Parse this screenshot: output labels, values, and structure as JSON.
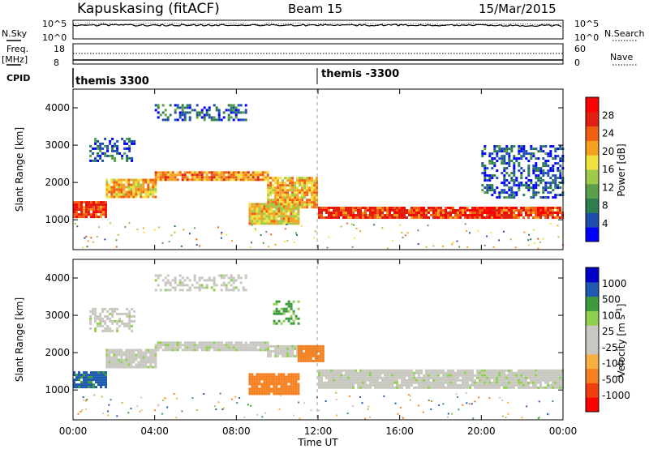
{
  "header": {
    "station": "Kapuskasing (fitACF)",
    "beam": "Beam 15",
    "date": "15/Mar/2015"
  },
  "summary_panels": {
    "nsky_label": "N.Sky",
    "nsky_ticks": [
      "10^5",
      "10^0"
    ],
    "nsearch_label": "N.Search",
    "nsearch_ticks": [
      "10^5",
      "10^0"
    ],
    "freq_label": "Freq.",
    "freq_unit": "[MHz]",
    "freq_ticks": [
      "18",
      "8"
    ],
    "nave_label": "Nave",
    "nave_ticks": [
      "60",
      "0"
    ],
    "cpid_label": "CPID",
    "cpid_segments": [
      "themis 3300",
      "themis -3300"
    ]
  },
  "chart_data": [
    {
      "type": "heatmap",
      "title": "",
      "ylabel": "Slant Range [km]",
      "xlabel": "Time UT",
      "xlim": [
        0,
        24
      ],
      "ylim": [
        200,
        4500
      ],
      "y_ticks": [
        "1000",
        "2000",
        "3000",
        "4000"
      ],
      "x_tick_labels": [
        "00:00",
        "04:00",
        "08:00",
        "12:00",
        "16:00",
        "20:00",
        "00:00"
      ],
      "colorbar": {
        "label": "Power [dB]",
        "labels": [
          "28",
          "24",
          "20",
          "16",
          "12",
          "8",
          "4"
        ],
        "colors": [
          "#0000ff",
          "#1e4fb0",
          "#2e7d4f",
          "#5aa04a",
          "#9ec94a",
          "#f0e040",
          "#f5a020",
          "#f06010",
          "#e02010",
          "#ff0000"
        ]
      },
      "echo_bands": [
        {
          "from_hour": 0.0,
          "to_hour": 1.6,
          "range_km": [
            1050,
            1500
          ],
          "power_db": 26
        },
        {
          "from_hour": 1.6,
          "to_hour": 4.0,
          "range_km": [
            1600,
            2100
          ],
          "power_db": 20
        },
        {
          "from_hour": 4.0,
          "to_hour": 9.5,
          "range_km": [
            2050,
            2300
          ],
          "power_db": 22
        },
        {
          "from_hour": 9.5,
          "to_hour": 12.0,
          "range_km": [
            1350,
            2150
          ],
          "power_db": 20
        },
        {
          "from_hour": 8.6,
          "to_hour": 11.0,
          "range_km": [
            900,
            1450
          ],
          "power_db": 18
        },
        {
          "from_hour": 12.0,
          "to_hour": 24.0,
          "range_km": [
            1050,
            1350
          ],
          "power_db": 26
        },
        {
          "from_hour": 4.0,
          "to_hour": 8.5,
          "range_km": [
            3700,
            4100
          ],
          "power_db": 6
        },
        {
          "from_hour": 0.8,
          "to_hour": 3.0,
          "range_km": [
            2600,
            3200
          ],
          "power_db": 6
        },
        {
          "from_hour": 20.0,
          "to_hour": 24.0,
          "range_km": [
            1600,
            3000
          ],
          "power_db": 5
        }
      ]
    },
    {
      "type": "heatmap",
      "title": "",
      "ylabel": "Slant Range [km]",
      "xlabel": "Time UT",
      "xlim": [
        0,
        24
      ],
      "ylim": [
        200,
        4500
      ],
      "y_ticks": [
        "1000",
        "2000",
        "3000",
        "4000"
      ],
      "x_tick_labels": [
        "00:00",
        "04:00",
        "08:00",
        "12:00",
        "16:00",
        "20:00",
        "00:00"
      ],
      "colorbar": {
        "label": "Velocity [m s-1]",
        "labels": [
          "1000",
          "500",
          "100",
          "25",
          "-25",
          "-100",
          "-500",
          "-1000"
        ],
        "colors": [
          "#ff0000",
          "#f04010",
          "#f58020",
          "#f5b040",
          "#c8c8c0",
          "#c8c8c0",
          "#90d050",
          "#3c9a3c",
          "#1e5ab0",
          "#0000c8"
        ]
      },
      "echo_bands": [
        {
          "from_hour": 0.0,
          "to_hour": 1.6,
          "range_km": [
            1050,
            1500
          ],
          "velocity": 120
        },
        {
          "from_hour": 1.6,
          "to_hour": 4.0,
          "range_km": [
            1600,
            2100
          ],
          "velocity": 0
        },
        {
          "from_hour": 4.0,
          "to_hour": 9.5,
          "range_km": [
            2050,
            2300
          ],
          "velocity": 0
        },
        {
          "from_hour": 9.5,
          "to_hour": 12.0,
          "range_km": [
            1900,
            2200
          ],
          "velocity": 0
        },
        {
          "from_hour": 11.0,
          "to_hour": 12.2,
          "range_km": [
            1800,
            2200
          ],
          "velocity": -200
        },
        {
          "from_hour": 8.6,
          "to_hour": 11.0,
          "range_km": [
            900,
            1450
          ],
          "velocity": -250
        },
        {
          "from_hour": 12.0,
          "to_hour": 24.0,
          "range_km": [
            1050,
            1550
          ],
          "velocity": 0
        },
        {
          "from_hour": 4.0,
          "to_hour": 8.5,
          "range_km": [
            3700,
            4100
          ],
          "velocity": 0
        },
        {
          "from_hour": 0.8,
          "to_hour": 3.0,
          "range_km": [
            2600,
            3200
          ],
          "velocity": 0
        },
        {
          "from_hour": 9.8,
          "to_hour": 11.0,
          "range_km": [
            2800,
            3400
          ],
          "velocity": 60
        }
      ]
    }
  ]
}
